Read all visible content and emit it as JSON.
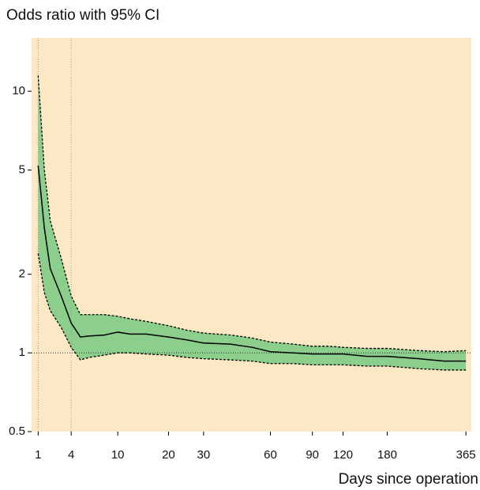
{
  "chart_data": {
    "type": "line",
    "title": "Odds ratio with 95% CI",
    "x_label": "Days since operation",
    "x": [
      1,
      1.5,
      2,
      3,
      4,
      5,
      6,
      8,
      10,
      12,
      15,
      20,
      25,
      30,
      40,
      50,
      60,
      75,
      90,
      105,
      120,
      150,
      180,
      240,
      300,
      365
    ],
    "estimate": [
      5.2,
      3.0,
      2.1,
      1.65,
      1.3,
      1.15,
      1.16,
      1.17,
      1.2,
      1.18,
      1.18,
      1.15,
      1.12,
      1.09,
      1.08,
      1.05,
      1.01,
      1.0,
      0.99,
      0.99,
      0.99,
      0.97,
      0.97,
      0.95,
      0.93,
      0.93
    ],
    "upper": [
      11.5,
      5.0,
      3.2,
      2.3,
      1.65,
      1.4,
      1.4,
      1.4,
      1.38,
      1.35,
      1.32,
      1.27,
      1.22,
      1.19,
      1.17,
      1.14,
      1.1,
      1.08,
      1.06,
      1.06,
      1.05,
      1.04,
      1.04,
      1.02,
      1.01,
      1.02
    ],
    "lower": [
      2.4,
      1.7,
      1.45,
      1.25,
      1.05,
      0.94,
      0.96,
      0.98,
      1.0,
      1.0,
      0.99,
      0.98,
      0.96,
      0.95,
      0.94,
      0.93,
      0.91,
      0.91,
      0.9,
      0.9,
      0.9,
      0.89,
      0.89,
      0.87,
      0.86,
      0.86
    ],
    "xlim": [
      0.5,
      383
    ],
    "xticks": [
      1,
      4,
      10,
      20,
      30,
      60,
      90,
      120,
      180,
      365
    ],
    "ylim": [
      0.5,
      16
    ],
    "yticks": [
      0.5,
      1,
      2,
      5,
      10
    ],
    "y_log": true,
    "reference_y": 1,
    "reference_x": [
      1,
      4
    ],
    "line_color": "#000000",
    "band_color": "#8ccf8c",
    "background_color": "#fde8c6"
  }
}
